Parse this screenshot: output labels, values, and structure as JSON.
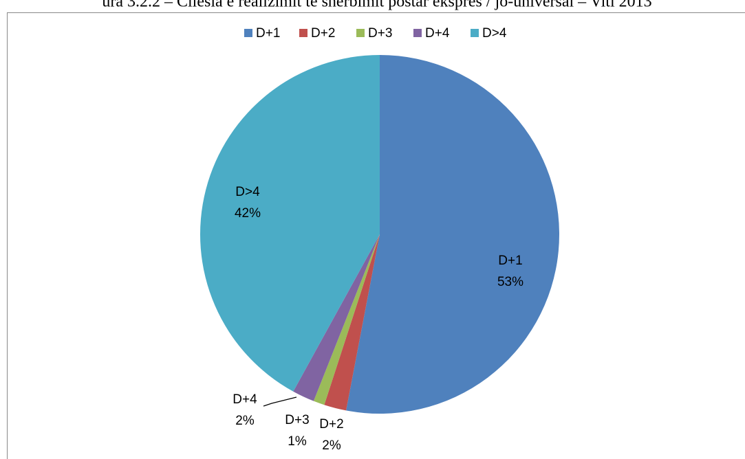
{
  "chart_data": {
    "type": "pie",
    "title": "ura 3.2.2 – Cilësia e realizimit të shërbimit postar ekspres / jo-universal – Viti 2013",
    "categories": [
      "D+1",
      "D+2",
      "D+3",
      "D+4",
      "D>4"
    ],
    "values": [
      53,
      2,
      1,
      2,
      42
    ],
    "value_labels": [
      "53%",
      "2%",
      "1%",
      "2%",
      "42%"
    ],
    "colors": [
      "#4f81bd",
      "#c0504d",
      "#9bbb59",
      "#8064a2",
      "#4bacc6"
    ],
    "legend": "top"
  }
}
